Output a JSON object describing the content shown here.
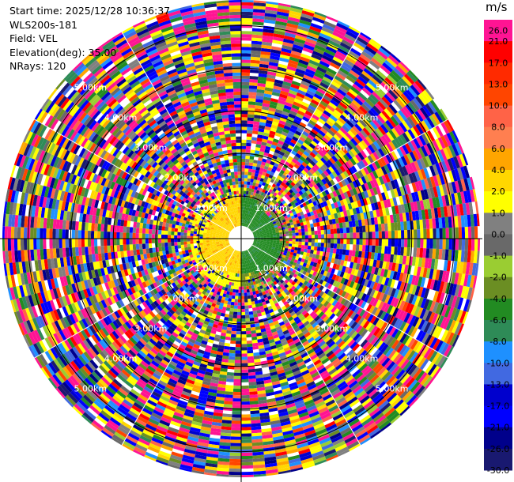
{
  "info": {
    "start_time": "Start time: 2025/12/28 10:36:37",
    "station": "WLS200s-181",
    "field": "Field: VEL",
    "elevation": "Elevation(deg): 35.00",
    "nrays": "NRays: 120"
  },
  "chart_data": {
    "type": "heatmap",
    "projection": "polar-ppi",
    "field": "VEL",
    "elevation_deg": 35.0,
    "nrays": 120,
    "range_rings_km": [
      1.0,
      2.0,
      3.0,
      4.0,
      5.0
    ],
    "range_labels": [
      "1.00km",
      "2.00km",
      "3.00km",
      "4.00km",
      "5.00km"
    ],
    "max_range_km": 5.6,
    "colorbar": {
      "unit": "m/s",
      "ticks": [
        "26.0",
        "21.0",
        "17.0",
        "13.0",
        "10.0",
        "8.0",
        "6.0",
        "4.0",
        "2.0",
        "1.0",
        "0.0",
        "-1.0",
        "-2.0",
        "-4.0",
        "-6.0",
        "-8.0",
        "-10.0",
        "-13.0",
        "-17.0",
        "-21.0",
        "-26.0",
        "-30.0"
      ],
      "colors": [
        "#ff1493",
        "#ff0000",
        "#ff2a00",
        "#ff4500",
        "#ff6347",
        "#ff7f50",
        "#ffa500",
        "#ffd700",
        "#ffff00",
        "#808080",
        "#696969",
        "#9acd32",
        "#6b8e23",
        "#228b22",
        "#2e8b57",
        "#1e90ff",
        "#4169e1",
        "#0000cd",
        "#0000ff",
        "#00008b",
        "#191970"
      ]
    },
    "near_field": {
      "west_color": "#ffd700",
      "east_color": "#228b22",
      "extent_km": 1.0
    }
  }
}
